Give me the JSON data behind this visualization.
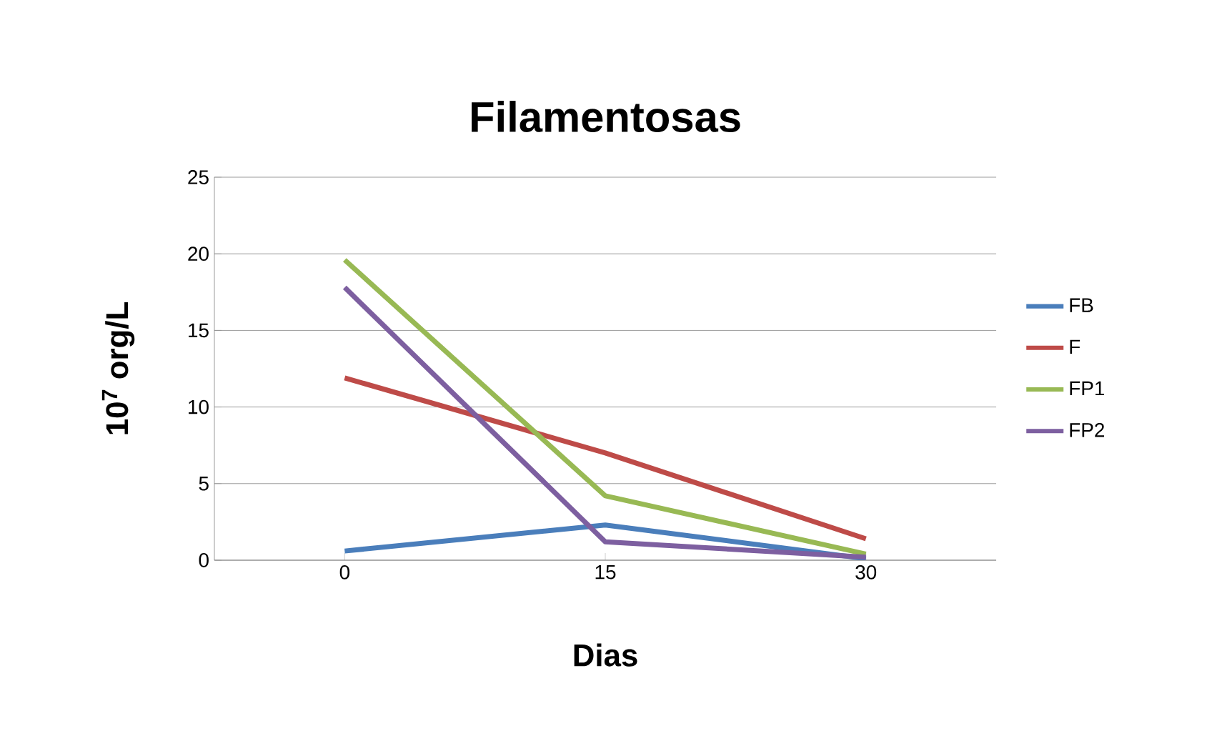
{
  "chart_data": {
    "type": "line",
    "title": "Filamentosas",
    "xlabel": "Dias",
    "ylabel": "10$^{7}$ org/L",
    "categories": [
      "0",
      "15",
      "30"
    ],
    "series": [
      {
        "name": "FB",
        "color": "#4a7ebb",
        "values": [
          0.6,
          2.3,
          0.1
        ]
      },
      {
        "name": "F",
        "color": "#be4b48",
        "values": [
          11.9,
          7.0,
          1.4
        ]
      },
      {
        "name": "FP1",
        "color": "#98b954",
        "values": [
          19.6,
          4.2,
          0.4
        ]
      },
      {
        "name": "FP2",
        "color": "#7d5fa0",
        "values": [
          17.8,
          1.2,
          0.2
        ]
      }
    ],
    "ylim": [
      0,
      25
    ],
    "yticks": [
      0,
      5,
      10,
      15,
      20,
      25
    ],
    "grid": "y",
    "legend": "right",
    "marker": "none",
    "line_style": "solid"
  }
}
